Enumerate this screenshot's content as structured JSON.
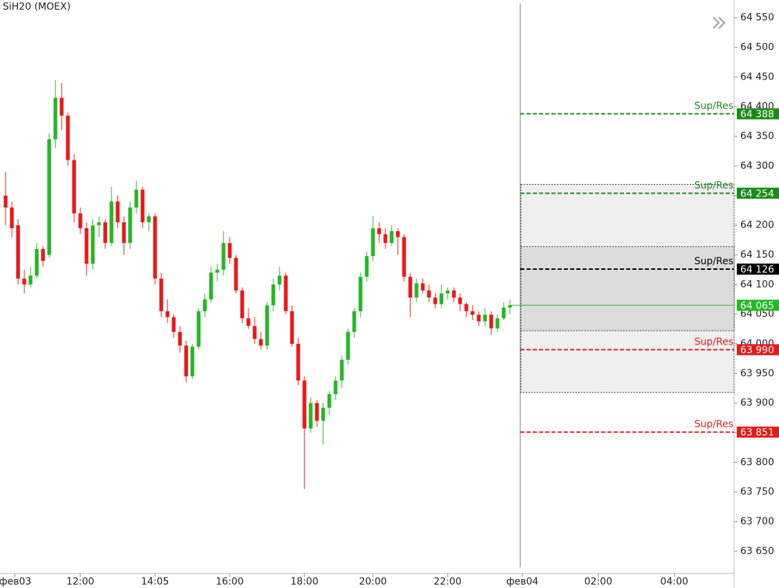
{
  "chart_data": {
    "type": "candlestick",
    "title": "SiH20 (MOEX)",
    "up_color": "#22b822",
    "down_color": "#ee1616",
    "categories": [
      null,
      null,
      null,
      null,
      null,
      null,
      null,
      null,
      null,
      null,
      null,
      null,
      null,
      null,
      null,
      null,
      null,
      null,
      null,
      null,
      null,
      null,
      null,
      null,
      null,
      null,
      null,
      null,
      null,
      null,
      null,
      null,
      null,
      null,
      null,
      null,
      null,
      null,
      null,
      null,
      null,
      null,
      null,
      null,
      null,
      null,
      null,
      null,
      null,
      null,
      null,
      null,
      null,
      null,
      null,
      null,
      null,
      null,
      null,
      null,
      null,
      null,
      null,
      null,
      null,
      null,
      null,
      null,
      null,
      null,
      null,
      null,
      null,
      null,
      null,
      null,
      null,
      null,
      null,
      null,
      null,
      null
    ],
    "open": [
      64250,
      64230,
      64200,
      64110,
      64100,
      64115,
      64160,
      64150,
      64345,
      64415,
      64385,
      64310,
      64220,
      64195,
      64135,
      64200,
      64205,
      64170,
      64240,
      64205,
      64170,
      64230,
      64260,
      64205,
      64215,
      64110,
      64055,
      64045,
      64020,
      63997,
      63945,
      63995,
      64055,
      64075,
      64120,
      64125,
      64170,
      64145,
      64090,
      64043,
      64030,
      64008,
      63997,
      64065,
      64100,
      64115,
      64055,
      64000,
      63938,
      63857,
      63900,
      63870,
      63892,
      63915,
      63938,
      63973,
      64020,
      64055,
      64113,
      64148,
      64195,
      64185,
      64170,
      64190,
      64180,
      64113,
      64078,
      64102,
      64090,
      64078,
      64067,
      64085,
      64090,
      64078,
      64067,
      64055,
      64049,
      64038,
      64049,
      64026,
      64043,
      64061
    ],
    "high": [
      64290,
      64240,
      64210,
      64125,
      64130,
      64170,
      64165,
      64355,
      64445,
      64440,
      64390,
      64320,
      64230,
      64205,
      64210,
      64215,
      64210,
      64265,
      64250,
      64215,
      64240,
      64275,
      64265,
      64220,
      64220,
      64120,
      64075,
      64050,
      64030,
      64005,
      64000,
      64060,
      64085,
      64130,
      64135,
      64190,
      64180,
      64150,
      64095,
      64060,
      64045,
      64020,
      64070,
      64110,
      64130,
      64120,
      64065,
      64010,
      63945,
      63910,
      63905,
      63900,
      63920,
      63945,
      63980,
      64025,
      64060,
      64120,
      64155,
      64215,
      64205,
      64195,
      64200,
      64195,
      64185,
      64120,
      64110,
      64110,
      64100,
      64085,
      64100,
      64095,
      64095,
      64085,
      64070,
      64065,
      64055,
      64060,
      64055,
      64050,
      64070,
      64075
    ],
    "low": [
      64200,
      64180,
      64100,
      64085,
      64095,
      64110,
      64130,
      64145,
      64330,
      64360,
      64300,
      64205,
      64185,
      64115,
      64125,
      64180,
      64160,
      64165,
      64195,
      64150,
      64160,
      64220,
      64195,
      64190,
      64100,
      64045,
      64035,
      64010,
      63985,
      63935,
      63940,
      63990,
      64045,
      64070,
      64105,
      64115,
      64135,
      64085,
      64035,
      64025,
      64000,
      63990,
      63990,
      64055,
      64090,
      64050,
      63995,
      63930,
      63755,
      63850,
      63860,
      63830,
      63880,
      63905,
      63925,
      63965,
      64010,
      64045,
      64105,
      64140,
      64170,
      64160,
      64165,
      64150,
      64105,
      64045,
      64070,
      64085,
      64070,
      64060,
      64060,
      64075,
      64070,
      64055,
      64045,
      64040,
      64030,
      64030,
      64015,
      64020,
      64040,
      64050
    ],
    "close": [
      64230,
      64195,
      64110,
      64100,
      64115,
      64160,
      64140,
      64345,
      64415,
      64385,
      64310,
      64220,
      64195,
      64135,
      64200,
      64205,
      64170,
      64240,
      64205,
      64170,
      64230,
      64260,
      64205,
      64215,
      64110,
      64055,
      64045,
      64020,
      63997,
      63945,
      63995,
      64055,
      64075,
      64120,
      64125,
      64170,
      64145,
      64090,
      64043,
      64030,
      64008,
      63997,
      64065,
      64100,
      64115,
      64055,
      64000,
      63938,
      63857,
      63900,
      63870,
      63892,
      63915,
      63938,
      63973,
      64020,
      64055,
      64113,
      64148,
      64195,
      64185,
      64170,
      64190,
      64180,
      64113,
      64078,
      64102,
      64090,
      64078,
      64067,
      64085,
      64090,
      64078,
      64067,
      64055,
      64049,
      64038,
      64049,
      64026,
      64043,
      64061,
      64065
    ],
    "xlim": [
      -0.9,
      117
    ],
    "xticks": [
      {
        "value": 1.5,
        "label": "фев03"
      },
      {
        "value": 12,
        "label": "12:00"
      },
      {
        "value": 24,
        "label": "14:05"
      },
      {
        "value": 36,
        "label": "16:00"
      },
      {
        "value": 48,
        "label": "18:00"
      },
      {
        "value": 59,
        "label": "20:00"
      },
      {
        "value": 71,
        "label": "22:00"
      },
      {
        "value": 83,
        "label": "фев04"
      },
      {
        "value": 95.2,
        "label": "02:00"
      },
      {
        "value": 107.4,
        "label": "04:00"
      }
    ],
    "ylim": [
      63616,
      64580
    ],
    "yticks": [
      {
        "value": 63650,
        "label": "63 650"
      },
      {
        "value": 63700,
        "label": "63 700"
      },
      {
        "value": 63750,
        "label": "63 750"
      },
      {
        "value": 63800,
        "label": "63 800"
      },
      {
        "value": 63850,
        "label": "63 850"
      },
      {
        "value": 63900,
        "label": "63 900"
      },
      {
        "value": 63950,
        "label": "63 950"
      },
      {
        "value": 64000,
        "label": "64 000"
      },
      {
        "value": 64050,
        "label": "64 050"
      },
      {
        "value": 64100,
        "label": "64 100"
      },
      {
        "value": 64150,
        "label": "64 150"
      },
      {
        "value": 64200,
        "label": "64 200"
      },
      {
        "value": 64250,
        "label": "64 250"
      },
      {
        "value": 64300,
        "label": "64 300"
      },
      {
        "value": 64350,
        "label": "64 350"
      },
      {
        "value": 64400,
        "label": "64 400"
      },
      {
        "value": 64450,
        "label": "64 450"
      },
      {
        "value": 64500,
        "label": "64 500"
      },
      {
        "value": 64550,
        "label": "64 550"
      }
    ],
    "zones": [
      {
        "from": 63918,
        "to": 64269,
        "color": "#efefef"
      },
      {
        "from": 64022,
        "to": 64164,
        "color": "#dcdcdc"
      }
    ],
    "levels": [
      {
        "label": "Sup/Res",
        "value": 64388,
        "value_label": "64 388",
        "color": "#1a8a1a"
      },
      {
        "label": "Sup/Res",
        "value": 64254,
        "value_label": "64 254",
        "color": "#1a8a1a"
      },
      {
        "label": "Sup/Res",
        "value": 64126,
        "value_label": "64 126",
        "color": "#000000"
      },
      {
        "label": "Sup/Res",
        "value": 63990,
        "value_label": "63 990",
        "color": "#e31b1b"
      },
      {
        "label": "Sup/Res",
        "value": 63851,
        "value_label": "63 851",
        "color": "#e31b1b"
      }
    ],
    "last": {
      "value": 64065,
      "label": "64 065",
      "color": "#22b822"
    }
  }
}
